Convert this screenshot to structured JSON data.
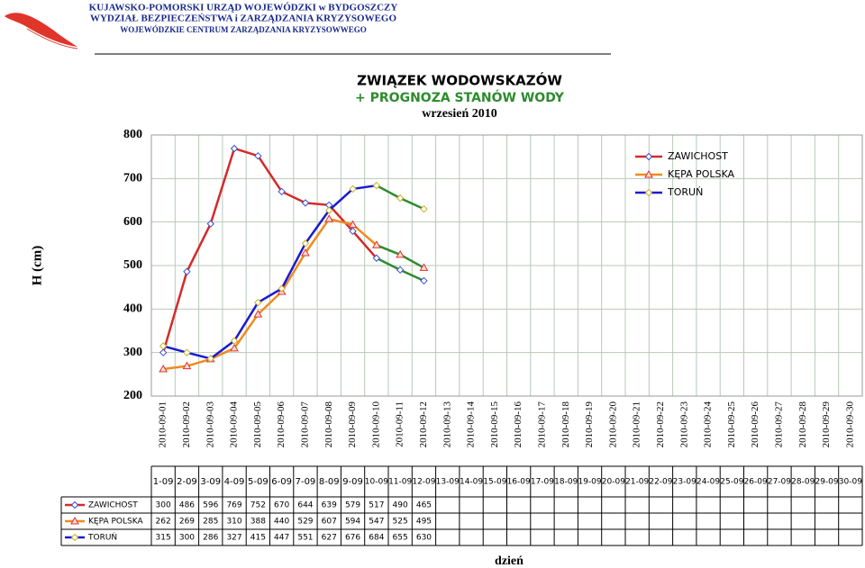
{
  "header": {
    "line1": "KUJAWSKO-POMORSKI URZĄD WOJEWÓDZKI w BYDGOSZCZY",
    "line2": "WYDZIAŁ BEZPIECZEŃSTWA i ZARZĄDZANIA KRYZYSOWEGO",
    "line3": "WOJEWÓDZKIE CENTRUM ZARZĄDZANIA KRYZYSOWWEGO"
  },
  "chart_data": {
    "type": "line",
    "title": "ZWIĄZEK WODOWSKAZÓW",
    "subtitle": "+ PROGNOZA STANÓW WODY",
    "period": "wrzesień 2010",
    "y_label": "H (cm)",
    "x_label": "dzień",
    "categories": [
      "2010-09-01",
      "2010-09-02",
      "2010-09-03",
      "2010-09-04",
      "2010-09-05",
      "2010-09-06",
      "2010-09-07",
      "2010-09-08",
      "2010-09-09",
      "2010-09-10",
      "2010-09-11",
      "2010-09-12",
      "2010-09-13",
      "2010-09-14",
      "2010-09-15",
      "2010-09-16",
      "2010-09-17",
      "2010-09-18",
      "2010-09-19",
      "2010-09-20",
      "2010-09-21",
      "2010-09-22",
      "2010-09-23",
      "2010-09-24",
      "2010-09-25",
      "2010-09-26",
      "2010-09-27",
      "2010-09-28",
      "2010-09-29",
      "2010-09-30"
    ],
    "series": [
      {
        "name": "ZAWICHOST",
        "color": "#d42a2a",
        "marker": "diamond",
        "marker_color": "#3a4fd0",
        "values": [
          300,
          486,
          596,
          769,
          752,
          670,
          644,
          639,
          579,
          517,
          490,
          465,
          null,
          null,
          null,
          null,
          null,
          null,
          null,
          null,
          null,
          null,
          null,
          null,
          null,
          null,
          null,
          null,
          null,
          null
        ]
      },
      {
        "name": "KĘPA POLSKA",
        "color": "#f08a1e",
        "marker": "triangle",
        "marker_color": "#e03030",
        "values": [
          262,
          269,
          285,
          310,
          388,
          440,
          529,
          607,
          594,
          547,
          525,
          495,
          null,
          null,
          null,
          null,
          null,
          null,
          null,
          null,
          null,
          null,
          null,
          null,
          null,
          null,
          null,
          null,
          null,
          null
        ]
      },
      {
        "name": "TORUŃ",
        "color": "#1a1ad0",
        "marker": "diamond",
        "marker_color": "#c8b020",
        "values": [
          315,
          300,
          286,
          327,
          415,
          447,
          551,
          627,
          676,
          684,
          655,
          630,
          null,
          null,
          null,
          null,
          null,
          null,
          null,
          null,
          null,
          null,
          null,
          null,
          null,
          null,
          null,
          null,
          null,
          null
        ]
      }
    ],
    "forecast_from": "2010-09-10",
    "forecast_color": "#2e8b2e",
    "ylim": [
      200,
      800
    ],
    "yticks": [
      200,
      300,
      400,
      500,
      600,
      700,
      800
    ],
    "grid": true,
    "legend": "upper right"
  },
  "table": {
    "columns": [
      "1-09",
      "2-09",
      "3-09",
      "4-09",
      "5-09",
      "6-09",
      "7-09",
      "8-09",
      "9-09",
      "10-09",
      "11-09",
      "12-09",
      "13-09",
      "14-09",
      "15-09",
      "16-09",
      "17-09",
      "18-09",
      "19-09",
      "20-09",
      "21-09",
      "22-09",
      "23-09",
      "24-09",
      "25-09",
      "26-09",
      "27-09",
      "28-09",
      "29-09",
      "30-09"
    ]
  }
}
